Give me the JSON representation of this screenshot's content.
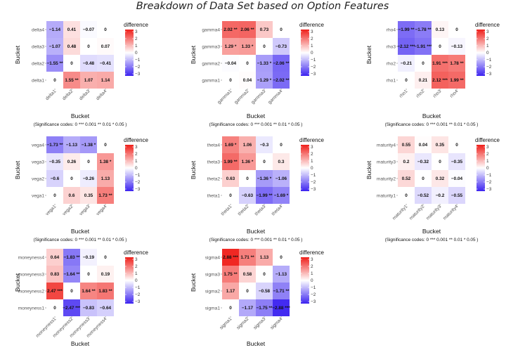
{
  "title": "Breakdown of Data Set based on Option Features",
  "common": {
    "xlabel": "Bucket",
    "ylabel": "Bucket",
    "legend_title": "difference",
    "legend_ticks": [
      "3",
      "2",
      "1",
      "0",
      "−1",
      "−2",
      "−3"
    ],
    "significance": "(Significance codes:  0 *** 0.001 ** 0.01 * 0.05 )",
    "colors": {
      "low": "#3b22f0",
      "mid": "#ffffff",
      "high": "#ef1f1a"
    },
    "scale": [
      -3,
      3
    ]
  },
  "chart_data": [
    {
      "type": "heatmap",
      "name": "delta",
      "labels": [
        "delta1",
        "delta2",
        "delta3",
        "delta4"
      ],
      "rows": [
        [
          "0",
          "1.55 **",
          "1.07",
          "1.14"
        ],
        [
          "-1.55 **",
          "0",
          "-0.48",
          "-0.41"
        ],
        [
          "-1.07",
          "0.48",
          "0",
          "0.07"
        ],
        [
          "-1.14",
          "0.41",
          "-0.07",
          "0"
        ]
      ]
    },
    {
      "type": "heatmap",
      "name": "gamma",
      "labels": [
        "gamma1",
        "gamma2",
        "gamma3",
        "gamma4"
      ],
      "rows": [
        [
          "0",
          "0.04",
          "-1.29 *",
          "-2.02 **"
        ],
        [
          "-0.04",
          "0",
          "-1.33 *",
          "-2.06 **"
        ],
        [
          "1.29 *",
          "1.33 *",
          "0",
          "-0.73"
        ],
        [
          "2.02 **",
          "2.06 **",
          "0.73",
          "0"
        ]
      ]
    },
    {
      "type": "heatmap",
      "name": "rho",
      "labels": [
        "rho1",
        "rho2",
        "rho3",
        "rho4"
      ],
      "rows": [
        [
          "0",
          "0.21",
          "2.12 ***",
          "1.99 **"
        ],
        [
          "-0.21",
          "0",
          "1.91 ***",
          "1.78 **"
        ],
        [
          "-2.12 ***",
          "-1.91 ***",
          "0",
          "-0.13"
        ],
        [
          "-1.99 **",
          "-1.78 **",
          "0.13",
          "0"
        ]
      ]
    },
    {
      "type": "heatmap",
      "name": "vega",
      "labels": [
        "vega1",
        "vega2",
        "vega3",
        "vega4"
      ],
      "rows": [
        [
          "0",
          "0.6",
          "0.35",
          "1.73 **"
        ],
        [
          "-0.6",
          "0",
          "-0.26",
          "1.13"
        ],
        [
          "-0.35",
          "0.26",
          "0",
          "1.38 *"
        ],
        [
          "-1.73 **",
          "-1.13",
          "-1.38 *",
          "0"
        ]
      ]
    },
    {
      "type": "heatmap",
      "name": "theta",
      "labels": [
        "theta1",
        "theta2",
        "theta3",
        "theta4"
      ],
      "rows": [
        [
          "0",
          "-0.63",
          "-1.99 **",
          "-1.69 *"
        ],
        [
          "0.63",
          "0",
          "-1.36 *",
          "-1.06"
        ],
        [
          "1.99 **",
          "1.36 *",
          "0",
          "0.3"
        ],
        [
          "1.69 *",
          "1.06",
          "-0.3",
          "0"
        ]
      ]
    },
    {
      "type": "heatmap",
      "name": "maturity",
      "labels": [
        "maturity1",
        "maturity2",
        "maturity3",
        "maturity4"
      ],
      "rows": [
        [
          "0",
          "-0.52",
          "-0.2",
          "-0.55"
        ],
        [
          "0.52",
          "0",
          "0.32",
          "-0.04"
        ],
        [
          "0.2",
          "-0.32",
          "0",
          "-0.35"
        ],
        [
          "0.55",
          "0.04",
          "0.35",
          "0"
        ]
      ]
    },
    {
      "type": "heatmap",
      "name": "moneyness",
      "labels": [
        "moneyness1",
        "moneyness2",
        "moneyness3",
        "moneyness4"
      ],
      "rows": [
        [
          "0",
          "-2.47 ***",
          "-0.83",
          "-0.64"
        ],
        [
          "2.47 ***",
          "0",
          "1.64 **",
          "1.83 **"
        ],
        [
          "0.83",
          "-1.64 **",
          "0",
          "0.19"
        ],
        [
          "0.64",
          "-1.83 **",
          "-0.19",
          "0"
        ]
      ]
    },
    {
      "type": "heatmap",
      "name": "sigma",
      "labels": [
        "sigma1",
        "sigma2",
        "sigma3",
        "sigma4"
      ],
      "rows": [
        [
          "0",
          "-1.17",
          "-1.75 **",
          "-2.88 ***"
        ],
        [
          "1.17",
          "0",
          "-0.58",
          "-1.71 **"
        ],
        [
          "1.75 **",
          "0.58",
          "0",
          "-1.13"
        ],
        [
          "2.88 ***",
          "1.71 **",
          "1.13",
          "0"
        ]
      ]
    }
  ]
}
